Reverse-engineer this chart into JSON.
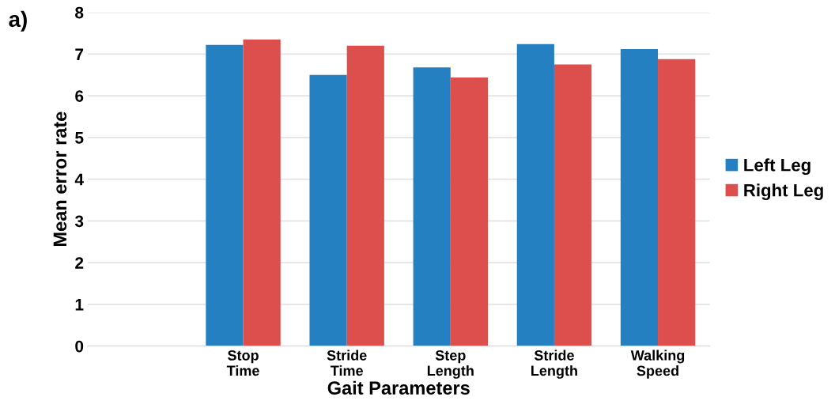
{
  "chart_data": {
    "type": "bar",
    "xlabel": "Gait Parameters",
    "ylabel": "Mean error rate",
    "annotations": [
      "a)"
    ],
    "categories": [
      null,
      "Stop\nTime",
      "Stride\nTime",
      "Step\nLength",
      "Stride\nLength",
      "Walking\nSpeed"
    ],
    "series": [
      {
        "name": "Left Leg",
        "color": "#2580c2",
        "values": [
          null,
          7.22,
          6.5,
          6.68,
          7.24,
          7.12
        ]
      },
      {
        "name": "Right Leg",
        "color": "#dc4f4c",
        "values": [
          null,
          7.35,
          7.2,
          6.44,
          6.75,
          6.88
        ]
      }
    ],
    "ylim": [
      0,
      8
    ],
    "yticks": [
      0,
      1,
      2,
      3,
      4,
      5,
      6,
      7,
      8
    ],
    "grid": "y",
    "legend": "right"
  }
}
